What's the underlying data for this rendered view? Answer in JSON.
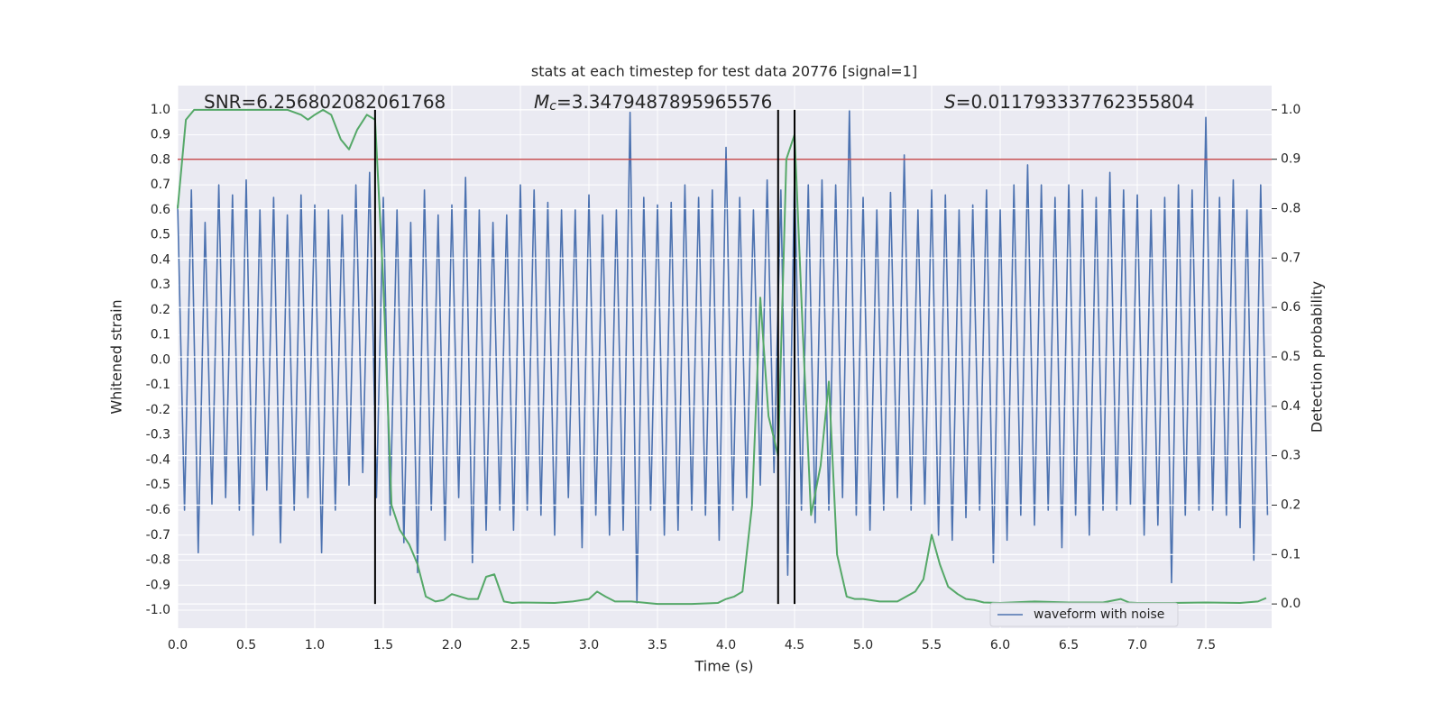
{
  "chart_data": {
    "type": "line",
    "title": "stats at each timestep for test data 20776 [signal=1]",
    "xlabel": "Time (s)",
    "ylabel": "Whitened strain",
    "y2label": "Detection probability",
    "annotations": [
      {
        "text": "SNR=6.256802082061768"
      },
      {
        "symbol": "M",
        "sub": "c",
        "text": "=3.3479487895965576"
      },
      {
        "symbol": "S",
        "text": "=0.011793337762355804"
      }
    ],
    "xlim": [
      0,
      7.98
    ],
    "ylim": [
      -1.072,
      1.097
    ],
    "y2lim": [
      -0.049,
      1.049
    ],
    "xticks": [
      {
        "value": 0,
        "label": "0.0"
      },
      0.5,
      {
        "value": 1,
        "label": "1.0"
      },
      1.5,
      {
        "value": 2,
        "label": "2.0"
      },
      2.5,
      {
        "value": 3,
        "label": "3.0"
      },
      3.5,
      {
        "value": 4,
        "label": "4.0"
      },
      4.5,
      {
        "value": 5,
        "label": "5.0"
      },
      5.5,
      {
        "value": 6,
        "label": "6.0"
      },
      6.5,
      {
        "value": 7,
        "label": "7.0"
      },
      7.5
    ],
    "yticks": [
      {
        "value": -1,
        "label": "-1.0"
      },
      -0.9,
      -0.8,
      -0.7,
      -0.6,
      -0.5,
      -0.4,
      -0.3,
      -0.2,
      -0.1,
      {
        "value": 0,
        "label": "0.0"
      },
      0.1,
      0.2,
      0.3,
      0.4,
      0.5,
      0.6,
      0.7,
      0.8,
      0.9,
      {
        "value": 1,
        "label": "1.0"
      }
    ],
    "y2ticks": [
      {
        "value": 0,
        "label": "0.0"
      },
      0.1,
      0.2,
      0.3,
      0.4,
      0.5,
      0.6,
      0.7,
      0.8,
      0.9,
      {
        "value": 1,
        "label": "1.0"
      }
    ],
    "grid": true,
    "legend": "lower right",
    "series": [
      {
        "name": "waveform with noise",
        "color": "#4c72b0",
        "x": [
          0,
          0.05,
          0.1,
          0.15,
          0.2,
          0.25,
          0.3,
          0.35,
          0.4,
          0.45,
          0.5,
          0.55,
          0.6,
          0.65,
          0.7,
          0.75,
          0.8,
          0.85,
          0.9,
          0.95,
          1,
          1.05,
          1.1,
          1.15,
          1.2,
          1.25,
          1.3,
          1.35,
          1.4,
          1.45,
          1.5,
          1.55,
          1.6,
          1.65,
          1.7,
          1.75,
          1.8,
          1.85,
          1.9,
          1.95,
          2,
          2.05,
          2.1,
          2.15,
          2.2,
          2.25,
          2.3,
          2.35,
          2.4,
          2.45,
          2.5,
          2.55,
          2.6,
          2.65,
          2.7,
          2.75,
          2.8,
          2.85,
          2.9,
          2.95,
          3,
          3.05,
          3.1,
          3.15,
          3.2,
          3.25,
          3.3,
          3.35,
          3.4,
          3.45,
          3.5,
          3.55,
          3.6,
          3.65,
          3.7,
          3.75,
          3.8,
          3.85,
          3.9,
          3.95,
          4,
          4.05,
          4.1,
          4.15,
          4.2,
          4.25,
          4.3,
          4.35,
          4.4,
          4.45,
          4.5,
          4.55,
          4.6,
          4.65,
          4.7,
          4.75,
          4.8,
          4.85,
          4.9,
          4.95,
          5,
          5.05,
          5.1,
          5.15,
          5.2,
          5.25,
          5.3,
          5.35,
          5.4,
          5.45,
          5.5,
          5.55,
          5.6,
          5.65,
          5.7,
          5.75,
          5.8,
          5.85,
          5.9,
          5.95,
          6,
          6.05,
          6.1,
          6.15,
          6.2,
          6.25,
          6.3,
          6.35,
          6.4,
          6.45,
          6.5,
          6.55,
          6.6,
          6.65,
          6.7,
          6.75,
          6.8,
          6.85,
          6.9,
          6.95,
          7,
          7.05,
          7.1,
          7.15,
          7.2,
          7.25,
          7.3,
          7.35,
          7.4,
          7.45,
          7.5,
          7.55,
          7.6,
          7.65,
          7.7,
          7.75,
          7.8,
          7.85,
          7.9,
          7.95
        ],
        "values": [
          0.62,
          -0.6,
          0.68,
          -0.77,
          0.55,
          -0.58,
          0.7,
          -0.55,
          0.66,
          -0.6,
          0.72,
          -0.7,
          0.6,
          -0.52,
          0.65,
          -0.73,
          0.58,
          -0.6,
          0.66,
          -0.55,
          0.62,
          -0.77,
          0.6,
          -0.6,
          0.58,
          -0.5,
          0.7,
          -0.45,
          0.75,
          -0.55,
          0.65,
          -0.62,
          0.6,
          -0.73,
          0.55,
          -0.85,
          0.68,
          -0.6,
          0.58,
          -0.72,
          0.62,
          -0.55,
          0.73,
          -0.81,
          0.6,
          -0.68,
          0.55,
          -0.6,
          0.58,
          -0.68,
          0.7,
          -0.6,
          0.68,
          -0.62,
          0.63,
          -0.7,
          0.6,
          -0.55,
          0.6,
          -0.75,
          0.66,
          -0.62,
          0.58,
          -0.7,
          0.6,
          -0.68,
          0.99,
          -0.97,
          0.65,
          -0.6,
          0.62,
          -0.7,
          0.63,
          -0.68,
          0.7,
          -0.6,
          0.65,
          -0.62,
          0.68,
          -0.72,
          0.85,
          -0.6,
          0.65,
          -0.55,
          0.6,
          -0.5,
          0.72,
          -0.45,
          0.68,
          -0.86,
          0.75,
          -0.6,
          0.7,
          -0.65,
          0.72,
          -0.6,
          0.7,
          -0.55,
          1.0,
          -0.62,
          0.65,
          -0.68,
          0.6,
          -0.6,
          0.67,
          -0.55,
          0.82,
          -0.6,
          0.6,
          -0.58,
          0.68,
          -0.7,
          0.66,
          -0.72,
          0.6,
          -0.63,
          0.62,
          -0.6,
          0.68,
          -0.81,
          0.6,
          -0.72,
          0.7,
          -0.62,
          0.78,
          -0.66,
          0.7,
          -0.6,
          0.65,
          -0.75,
          0.7,
          -0.62,
          0.68,
          -0.7,
          0.65,
          -0.6,
          0.75,
          -0.6,
          0.68,
          -0.58,
          0.66,
          -0.7,
          0.6,
          -0.66,
          0.65,
          -0.89,
          0.7,
          -0.62,
          0.68,
          -0.6,
          0.97,
          -0.6,
          0.65,
          -0.62,
          0.72,
          -0.67,
          0.6,
          -0.8,
          0.7,
          -0.62
        ]
      },
      {
        "color": "#55a868",
        "axis": "y2",
        "x": [
          0,
          0.06,
          0.12,
          0.5,
          0.8,
          0.9,
          0.95,
          1.0,
          1.06,
          1.12,
          1.19,
          1.25,
          1.31,
          1.38,
          1.44,
          1.5,
          1.56,
          1.62,
          1.69,
          1.75,
          1.81,
          1.88,
          1.94,
          2.0,
          2.06,
          2.12,
          2.19,
          2.25,
          2.31,
          2.38,
          2.44,
          2.5,
          2.75,
          2.88,
          3.0,
          3.06,
          3.12,
          3.19,
          3.31,
          3.5,
          3.75,
          3.94,
          4.0,
          4.06,
          4.12,
          4.19,
          4.25,
          4.31,
          4.38,
          4.44,
          4.5,
          4.56,
          4.62,
          4.69,
          4.75,
          4.81,
          4.88,
          4.94,
          5.0,
          5.12,
          5.25,
          5.38,
          5.44,
          5.5,
          5.56,
          5.62,
          5.69,
          5.75,
          5.81,
          5.88,
          6.0,
          6.25,
          6.5,
          6.75,
          6.88,
          6.94,
          7.0,
          7.25,
          7.5,
          7.75,
          7.88,
          7.94
        ],
        "values": [
          0.8,
          0.98,
          1.0,
          1.0,
          1.0,
          0.99,
          0.98,
          0.99,
          1.0,
          0.99,
          0.94,
          0.92,
          0.96,
          0.99,
          0.98,
          0.65,
          0.2,
          0.15,
          0.12,
          0.08,
          0.015,
          0.005,
          0.008,
          0.02,
          0.015,
          0.01,
          0.01,
          0.055,
          0.06,
          0.005,
          0.002,
          0.003,
          0.002,
          0.005,
          0.01,
          0.025,
          0.015,
          0.005,
          0.005,
          0.0,
          0.0,
          0.002,
          0.01,
          0.015,
          0.025,
          0.2,
          0.62,
          0.38,
          0.3,
          0.9,
          0.95,
          0.55,
          0.18,
          0.28,
          0.45,
          0.1,
          0.015,
          0.01,
          0.01,
          0.005,
          0.005,
          0.025,
          0.05,
          0.14,
          0.08,
          0.035,
          0.02,
          0.01,
          0.008,
          0.003,
          0.002,
          0.005,
          0.003,
          0.003,
          0.01,
          0.003,
          0.002,
          0.002,
          0.003,
          0.002,
          0.005,
          0.012
        ]
      }
    ],
    "hlines": [
      {
        "value": 0.9,
        "axis": "y2",
        "color": "#c44e52"
      }
    ],
    "vlines": {
      "x": [
        1.44,
        4.38,
        4.5
      ],
      "span": [
        0,
        1
      ],
      "axis": "y2",
      "color": "#000000"
    }
  }
}
